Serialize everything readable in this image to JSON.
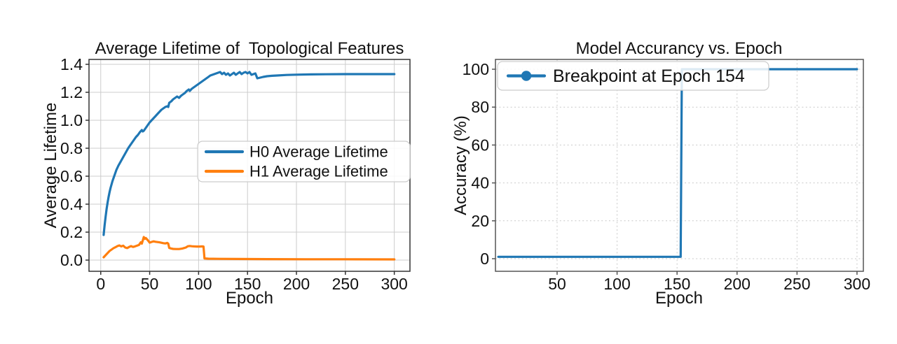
{
  "figure": {
    "background": "#ffffff",
    "text_color": "#111111"
  },
  "chart_data": [
    {
      "type": "line",
      "title": "Average Lifetime of  Topological Features",
      "xlabel": "Epoch",
      "ylabel": "Average Lifetime",
      "xlim": [
        -12,
        316
      ],
      "ylim": [
        -0.08,
        1.435
      ],
      "xticks": [
        0,
        50,
        100,
        150,
        200,
        250,
        300
      ],
      "xtick_labels": [
        "0",
        "50",
        "100",
        "150",
        "200",
        "250",
        "300"
      ],
      "yticks": [
        0,
        0.2,
        0.4,
        0.6,
        0.8,
        1.0,
        1.2,
        1.4
      ],
      "ytick_labels": [
        "0.0",
        "0.2",
        "0.4",
        "0.6",
        "0.8",
        "1.0",
        "1.2",
        "1.4"
      ],
      "grid": {
        "show": true,
        "style": "solid",
        "color": "#cccccc"
      },
      "spine_color": "#333333",
      "legend": {
        "position": "center-right",
        "entries": [
          "H0 Average Lifetime",
          "H1 Average Lifetime"
        ]
      },
      "series": [
        {
          "name": "H0 Average Lifetime",
          "color": "#1f77b4",
          "marker": "none",
          "points": [
            [
              3,
              0.18
            ],
            [
              4,
              0.25
            ],
            [
              5,
              0.31
            ],
            [
              6,
              0.365
            ],
            [
              7,
              0.41
            ],
            [
              8,
              0.45
            ],
            [
              9,
              0.485
            ],
            [
              10,
              0.515
            ],
            [
              12,
              0.565
            ],
            [
              14,
              0.605
            ],
            [
              16,
              0.645
            ],
            [
              18,
              0.675
            ],
            [
              20,
              0.7
            ],
            [
              22,
              0.725
            ],
            [
              24,
              0.75
            ],
            [
              26,
              0.775
            ],
            [
              28,
              0.8
            ],
            [
              30,
              0.82
            ],
            [
              32,
              0.84
            ],
            [
              34,
              0.86
            ],
            [
              36,
              0.88
            ],
            [
              38,
              0.895
            ],
            [
              40,
              0.915
            ],
            [
              42,
              0.93
            ],
            [
              43,
              0.92
            ],
            [
              44,
              0.925
            ],
            [
              46,
              0.945
            ],
            [
              48,
              0.965
            ],
            [
              50,
              0.985
            ],
            [
              52,
              1.0
            ],
            [
              54,
              1.015
            ],
            [
              56,
              1.03
            ],
            [
              58,
              1.045
            ],
            [
              60,
              1.06
            ],
            [
              62,
              1.075
            ],
            [
              64,
              1.085
            ],
            [
              66,
              1.095
            ],
            [
              68,
              1.1
            ],
            [
              69,
              1.095
            ],
            [
              70,
              1.125
            ],
            [
              72,
              1.135
            ],
            [
              74,
              1.15
            ],
            [
              76,
              1.16
            ],
            [
              78,
              1.17
            ],
            [
              80,
              1.16
            ],
            [
              82,
              1.175
            ],
            [
              84,
              1.185
            ],
            [
              86,
              1.195
            ],
            [
              88,
              1.21
            ],
            [
              90,
              1.22
            ],
            [
              91,
              1.21
            ],
            [
              93,
              1.225
            ],
            [
              95,
              1.235
            ],
            [
              97,
              1.245
            ],
            [
              100,
              1.26
            ],
            [
              102,
              1.27
            ],
            [
              104,
              1.28
            ],
            [
              106,
              1.29
            ],
            [
              108,
              1.3
            ],
            [
              110,
              1.31
            ],
            [
              112,
              1.32
            ],
            [
              114,
              1.325
            ],
            [
              116,
              1.33
            ],
            [
              118,
              1.335
            ],
            [
              120,
              1.34
            ],
            [
              122,
              1.345
            ],
            [
              124,
              1.33
            ],
            [
              126,
              1.34
            ],
            [
              128,
              1.325
            ],
            [
              130,
              1.335
            ],
            [
              132,
              1.32
            ],
            [
              134,
              1.33
            ],
            [
              136,
              1.34
            ],
            [
              138,
              1.325
            ],
            [
              140,
              1.335
            ],
            [
              142,
              1.345
            ],
            [
              144,
              1.33
            ],
            [
              146,
              1.34
            ],
            [
              148,
              1.345
            ],
            [
              150,
              1.335
            ],
            [
              152,
              1.345
            ],
            [
              154,
              1.325
            ],
            [
              156,
              1.33
            ],
            [
              158,
              1.335
            ],
            [
              160,
              1.3
            ],
            [
              163,
              1.305
            ],
            [
              166,
              1.31
            ],
            [
              170,
              1.315
            ],
            [
              175,
              1.318
            ],
            [
              180,
              1.32
            ],
            [
              190,
              1.324
            ],
            [
              200,
              1.326
            ],
            [
              215,
              1.328
            ],
            [
              230,
              1.329
            ],
            [
              250,
              1.33
            ],
            [
              275,
              1.33
            ],
            [
              300,
              1.33
            ]
          ]
        },
        {
          "name": "H1 Average Lifetime",
          "color": "#ff7f0e",
          "marker": "none",
          "points": [
            [
              3,
              0.02
            ],
            [
              5,
              0.035
            ],
            [
              7,
              0.05
            ],
            [
              9,
              0.065
            ],
            [
              11,
              0.075
            ],
            [
              13,
              0.085
            ],
            [
              15,
              0.092
            ],
            [
              17,
              0.1
            ],
            [
              19,
              0.105
            ],
            [
              21,
              0.098
            ],
            [
              23,
              0.103
            ],
            [
              25,
              0.09
            ],
            [
              27,
              0.086
            ],
            [
              29,
              0.094
            ],
            [
              31,
              0.1
            ],
            [
              33,
              0.094
            ],
            [
              35,
              0.098
            ],
            [
              37,
              0.103
            ],
            [
              39,
              0.108
            ],
            [
              41,
              0.128
            ],
            [
              42,
              0.118
            ],
            [
              44,
              0.165
            ],
            [
              45,
              0.152
            ],
            [
              46,
              0.158
            ],
            [
              48,
              0.143
            ],
            [
              50,
              0.125
            ],
            [
              52,
              0.13
            ],
            [
              54,
              0.134
            ],
            [
              56,
              0.131
            ],
            [
              58,
              0.129
            ],
            [
              60,
              0.127
            ],
            [
              62,
              0.124
            ],
            [
              64,
              0.121
            ],
            [
              66,
              0.119
            ],
            [
              68,
              0.123
            ],
            [
              69,
              0.118
            ],
            [
              70,
              0.087
            ],
            [
              72,
              0.083
            ],
            [
              74,
              0.08
            ],
            [
              77,
              0.079
            ],
            [
              80,
              0.079
            ],
            [
              83,
              0.082
            ],
            [
              85,
              0.086
            ],
            [
              87,
              0.09
            ],
            [
              89,
              0.099
            ],
            [
              91,
              0.101
            ],
            [
              93,
              0.099
            ],
            [
              95,
              0.098
            ],
            [
              98,
              0.097
            ],
            [
              101,
              0.097
            ],
            [
              104,
              0.098
            ],
            [
              105,
              0.097
            ],
            [
              106,
              0.012
            ],
            [
              110,
              0.01
            ],
            [
              120,
              0.009
            ],
            [
              140,
              0.008
            ],
            [
              170,
              0.007
            ],
            [
              210,
              0.006
            ],
            [
              250,
              0.006
            ],
            [
              300,
              0.005
            ]
          ]
        }
      ]
    },
    {
      "type": "line",
      "title": "Model Accurancy vs. Epoch",
      "xlabel": "Epoch",
      "ylabel": "Accuracy (%)",
      "xlim": [
        -1.4,
        305.3
      ],
      "ylim": [
        -6.64,
        105.17
      ],
      "xticks": [
        50,
        100,
        150,
        200,
        250,
        300
      ],
      "xtick_labels": [
        "50",
        "100",
        "150",
        "200",
        "250",
        "300"
      ],
      "yticks": [
        0,
        20,
        40,
        60,
        80,
        100
      ],
      "ytick_labels": [
        "0",
        "20",
        "40",
        "60",
        "80",
        "100"
      ],
      "grid": {
        "show": true,
        "style": "dotted",
        "color": "#c8c8c8"
      },
      "spine_color": "#555555",
      "legend": {
        "position": "upper-left",
        "entries": [
          "Breakpoint at Epoch 154"
        ]
      },
      "series": [
        {
          "name": "Breakpoint at Epoch 154",
          "color": "#1f77b4",
          "marker": "circle-in-legend",
          "breakpoint_epoch": 154,
          "points": [
            [
              1,
              1
            ],
            [
              153,
              1
            ],
            [
              154,
              100
            ],
            [
              300,
              100
            ]
          ]
        }
      ]
    }
  ]
}
